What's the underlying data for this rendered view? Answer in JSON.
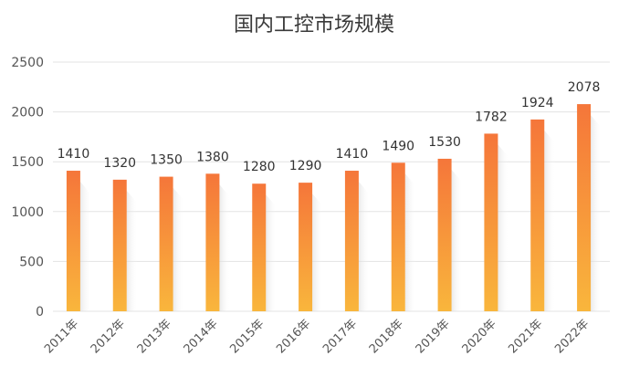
{
  "chart_data": {
    "type": "bar",
    "title": "国内工控市场规模",
    "categories": [
      "2011年",
      "2012年",
      "2013年",
      "2014年",
      "2015年",
      "2016年",
      "2017年",
      "2018年",
      "2019年",
      "2020年",
      "2021年",
      "2022年"
    ],
    "values": [
      1410,
      1320,
      1350,
      1380,
      1280,
      1290,
      1410,
      1490,
      1530,
      1782,
      1924,
      2078
    ],
    "value_labels": [
      "1410",
      "1320",
      "1350",
      "1380",
      "1280",
      "1290",
      "1410",
      "1490",
      "1530",
      "1782",
      "1924",
      "2078"
    ],
    "y_ticks": [
      "0",
      "500",
      "1000",
      "1500",
      "2000",
      "2500"
    ],
    "ylim": [
      0,
      2500
    ],
    "grid": true,
    "legend": "none",
    "bar_color_top": "#f5763a",
    "bar_color_bottom": "#f9b63c"
  }
}
